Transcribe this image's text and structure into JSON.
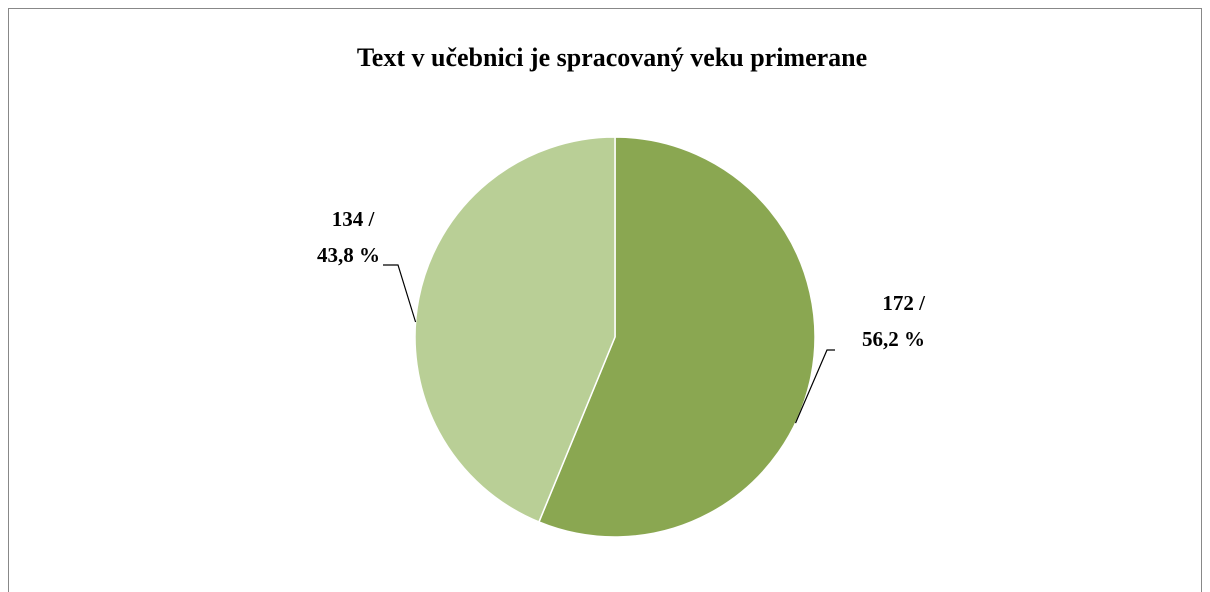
{
  "chart_data": {
    "type": "pie",
    "title": "Text v učebnici je spracovaný veku primerane",
    "values": [
      172,
      134
    ],
    "value_labels": [
      [
        "172 /",
        "56,2 %"
      ],
      [
        "134 /",
        "43,8 %"
      ]
    ],
    "colors": [
      "#8aa751",
      "#b9cf96"
    ]
  }
}
